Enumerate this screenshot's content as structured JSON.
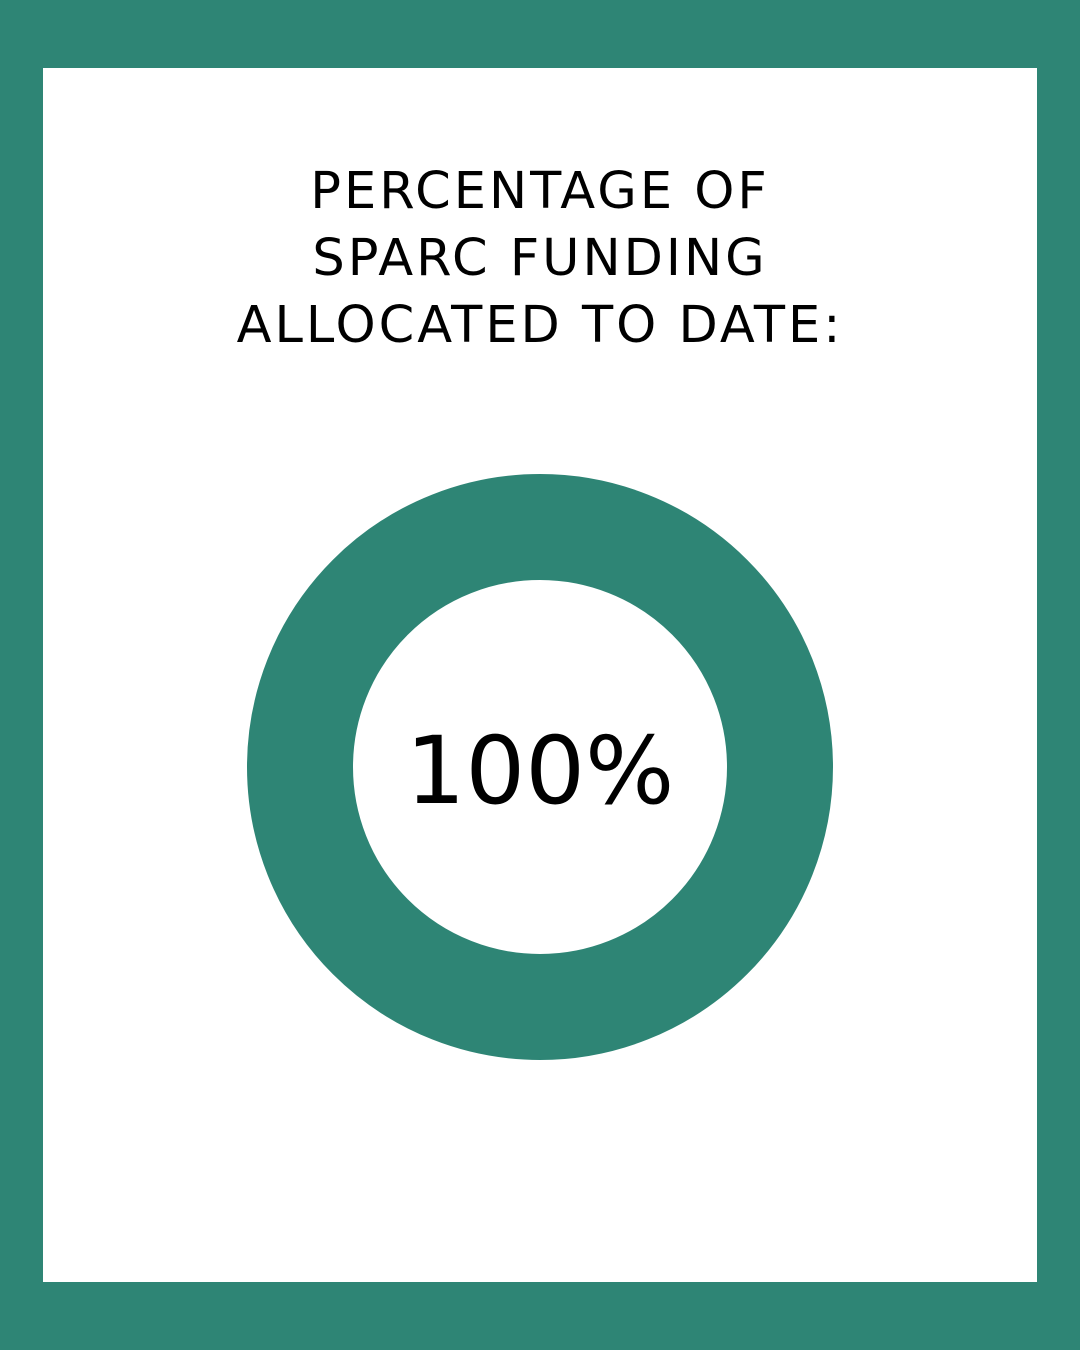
{
  "chart_data": {
    "type": "donut",
    "title": [
      "PERCENTAGE OF",
      "SPARC FUNDING",
      "ALLOCATED TO DATE:"
    ],
    "values": [
      100
    ],
    "value_labels": [
      "100%"
    ],
    "color": "#2e8575"
  }
}
